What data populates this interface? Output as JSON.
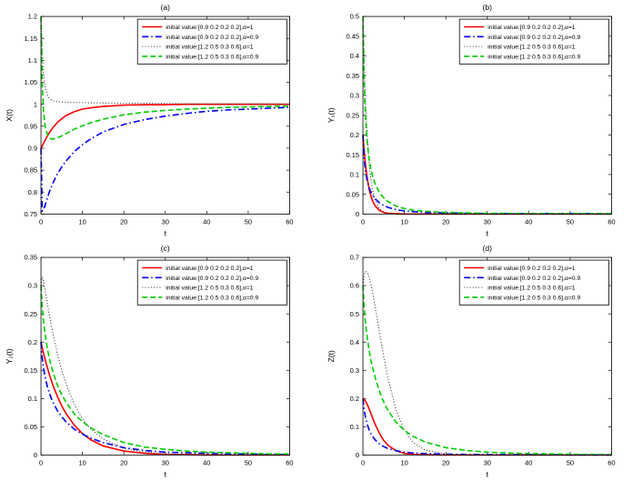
{
  "figure": {
    "background": "#ffffff",
    "axes_color": "#000000",
    "legend_border_color": "#000000"
  },
  "chart_data": [
    {
      "type": "line",
      "title": "(a)",
      "xlabel": "t",
      "ylabel": "X(t)",
      "xlim": [
        0,
        60
      ],
      "ylim": [
        0.75,
        1.2
      ],
      "grid": false,
      "legend_position": "top-right",
      "xticks": [
        0,
        10,
        20,
        30,
        40,
        50,
        60
      ],
      "yticks": {
        "values": [
          0.75,
          0.8,
          0.85,
          0.9,
          0.95,
          1,
          1.05,
          1.1,
          1.15,
          1.2
        ],
        "labels": [
          "0.75",
          "0.8",
          "0.85",
          "0.9",
          "0.95",
          "1",
          "1.05",
          "1.1",
          "1.15",
          "1.2"
        ]
      },
      "x": [
        0,
        0.3,
        0.6,
        1,
        1.5,
        2,
        2.5,
        3,
        4,
        5,
        6,
        8,
        10,
        12,
        15,
        20,
        25,
        30,
        35,
        40,
        45,
        50,
        55,
        60
      ],
      "series": [
        {
          "name": "initial value:[0.9 0.2 0.2 0.2],α=1",
          "color": "#ff0000",
          "style": "solid",
          "width": 1.6,
          "y": [
            0.9,
            0.905,
            0.911,
            0.918,
            0.927,
            0.935,
            0.942,
            0.948,
            0.959,
            0.967,
            0.974,
            0.983,
            0.989,
            0.992,
            0.995,
            0.998,
            0.999,
            0.999,
            1,
            1,
            1,
            1,
            1,
            1
          ]
        },
        {
          "name": "initial value:[0.9 0.2 0.2 0.2],α=0.9",
          "color": "#0000ee",
          "style": "dashdot",
          "width": 1.6,
          "y": [
            0.9,
            0.757,
            0.76,
            0.77,
            0.785,
            0.8,
            0.812,
            0.823,
            0.842,
            0.857,
            0.87,
            0.892,
            0.908,
            0.921,
            0.937,
            0.954,
            0.965,
            0.973,
            0.979,
            0.984,
            0.987,
            0.989,
            0.991,
            0.993
          ]
        },
        {
          "name": "initial value:[1.2 0.5 0.3 0.6],α=1",
          "color": "#303030",
          "style": "dotted",
          "width": 1.1,
          "y": [
            1.2,
            1.12,
            1.07,
            1.04,
            1.022,
            1.014,
            1.01,
            1.008,
            1.006,
            1.005,
            1.005,
            1.004,
            1.004,
            1.003,
            1.003,
            1.002,
            1.002,
            1.002,
            1.001,
            1.001,
            1.001,
            1.001,
            1.001,
            1.0
          ]
        },
        {
          "name": "initial value:[1.2 0.5 0.3 0.6],α=0.9",
          "color": "#00cc00",
          "style": "dashed",
          "width": 1.6,
          "y": [
            1.2,
            1.05,
            0.985,
            0.95,
            0.932,
            0.924,
            0.921,
            0.921,
            0.924,
            0.928,
            0.933,
            0.943,
            0.951,
            0.958,
            0.966,
            0.976,
            0.982,
            0.986,
            0.989,
            0.991,
            0.993,
            0.994,
            0.995,
            0.996
          ]
        }
      ]
    },
    {
      "type": "line",
      "title": "(b)",
      "xlabel": "t",
      "ylabel": "Y₁(t)",
      "xlim": [
        0,
        60
      ],
      "ylim": [
        0,
        0.5
      ],
      "grid": false,
      "legend_position": "top-right",
      "xticks": [
        0,
        10,
        20,
        30,
        40,
        50,
        60
      ],
      "yticks": {
        "values": [
          0,
          0.05,
          0.1,
          0.15,
          0.2,
          0.25,
          0.3,
          0.35,
          0.4,
          0.45,
          0.5
        ],
        "labels": [
          "0",
          "0.05",
          "0.1",
          "0.15",
          "0.2",
          "0.25",
          "0.3",
          "0.35",
          "0.4",
          "0.45",
          "0.5"
        ]
      },
      "x": [
        0,
        0.3,
        0.6,
        1,
        1.5,
        2,
        2.5,
        3,
        4,
        5,
        6,
        8,
        10,
        12,
        15,
        20,
        25,
        30,
        35,
        40,
        45,
        50,
        55,
        60
      ],
      "series": [
        {
          "name": "initial value:[0.9 0.2 0.2 0.2],α=1",
          "color": "#ff0000",
          "style": "solid",
          "width": 1.6,
          "y": [
            0.2,
            0.159,
            0.126,
            0.093,
            0.063,
            0.043,
            0.029,
            0.02,
            0.009,
            0.004,
            0.002,
            0.001,
            0,
            0,
            0,
            0,
            0,
            0,
            0,
            0,
            0,
            0,
            0,
            0
          ]
        },
        {
          "name": "initial value:[0.9 0.2 0.2 0.2],α=0.9",
          "color": "#0000ee",
          "style": "dashdot",
          "width": 1.6,
          "y": [
            0.2,
            0.14,
            0.11,
            0.085,
            0.066,
            0.054,
            0.045,
            0.038,
            0.028,
            0.022,
            0.017,
            0.011,
            0.008,
            0.006,
            0.004,
            0.003,
            0.002,
            0.001,
            0.001,
            0.001,
            0.001,
            0.001,
            0.001,
            0.001
          ]
        },
        {
          "name": "initial value:[1.2 0.5 0.3 0.6],α=1",
          "color": "#303030",
          "style": "dotted",
          "width": 1.1,
          "y": [
            0.5,
            0.381,
            0.29,
            0.202,
            0.128,
            0.081,
            0.052,
            0.033,
            0.013,
            0.005,
            0.002,
            0,
            0,
            0,
            0,
            0,
            0,
            0,
            0,
            0,
            0,
            0,
            0,
            0
          ]
        },
        {
          "name": "initial value:[1.2 0.5 0.3 0.6],α=0.9",
          "color": "#00cc00",
          "style": "dashed",
          "width": 1.6,
          "y": [
            0.5,
            0.33,
            0.25,
            0.185,
            0.138,
            0.11,
            0.09,
            0.075,
            0.054,
            0.041,
            0.032,
            0.02,
            0.014,
            0.01,
            0.007,
            0.004,
            0.003,
            0.002,
            0.002,
            0.001,
            0.001,
            0.001,
            0.001,
            0.001
          ]
        }
      ]
    },
    {
      "type": "line",
      "title": "(c)",
      "xlabel": "t",
      "ylabel": "Y₂(t)",
      "xlim": [
        0,
        60
      ],
      "ylim": [
        0,
        0.35
      ],
      "grid": false,
      "legend_position": "top-right",
      "xticks": [
        0,
        10,
        20,
        30,
        40,
        50,
        60
      ],
      "yticks": {
        "values": [
          0,
          0.05,
          0.1,
          0.15,
          0.2,
          0.25,
          0.3,
          0.35
        ],
        "labels": [
          "0",
          "0.05",
          "0.1",
          "0.15",
          "0.2",
          "0.25",
          "0.3",
          "0.35"
        ]
      },
      "x": [
        0,
        0.3,
        0.6,
        1,
        1.5,
        2,
        2.5,
        3,
        4,
        5,
        6,
        8,
        10,
        12,
        15,
        20,
        25,
        30,
        35,
        40,
        45,
        50,
        55,
        60
      ],
      "series": [
        {
          "name": "initial value:[0.9 0.2 0.2 0.2],α=1",
          "color": "#ff0000",
          "style": "solid",
          "width": 1.6,
          "y": [
            0.2,
            0.19,
            0.181,
            0.169,
            0.156,
            0.143,
            0.132,
            0.121,
            0.103,
            0.087,
            0.074,
            0.053,
            0.038,
            0.027,
            0.016,
            0.007,
            0.003,
            0.001,
            0.001,
            0,
            0,
            0,
            0,
            0
          ]
        },
        {
          "name": "initial value:[0.9 0.2 0.2 0.2],α=0.9",
          "color": "#0000ee",
          "style": "dashdot",
          "width": 1.6,
          "y": [
            0.2,
            0.172,
            0.155,
            0.138,
            0.122,
            0.11,
            0.1,
            0.092,
            0.078,
            0.068,
            0.059,
            0.046,
            0.037,
            0.03,
            0.022,
            0.013,
            0.008,
            0.005,
            0.004,
            0.003,
            0.002,
            0.002,
            0.001,
            0.001
          ]
        },
        {
          "name": "initial value:[1.2 0.5 0.3 0.6],α=1",
          "color": "#303030",
          "style": "dotted",
          "width": 1.1,
          "y": [
            0.3,
            0.315,
            0.308,
            0.292,
            0.27,
            0.249,
            0.229,
            0.211,
            0.178,
            0.15,
            0.127,
            0.09,
            0.064,
            0.046,
            0.028,
            0.012,
            0.005,
            0.002,
            0.001,
            0,
            0,
            0,
            0,
            0
          ]
        },
        {
          "name": "initial value:[1.2 0.5 0.3 0.6],α=0.9",
          "color": "#00cc00",
          "style": "dashed",
          "width": 1.6,
          "y": [
            0.3,
            0.262,
            0.238,
            0.213,
            0.19,
            0.172,
            0.157,
            0.144,
            0.123,
            0.107,
            0.094,
            0.073,
            0.059,
            0.048,
            0.036,
            0.022,
            0.014,
            0.01,
            0.007,
            0.005,
            0.004,
            0.003,
            0.002,
            0.002
          ]
        }
      ]
    },
    {
      "type": "line",
      "title": "(d)",
      "xlabel": "t",
      "ylabel": "Z(t)",
      "xlim": [
        0,
        60
      ],
      "ylim": [
        0,
        0.7
      ],
      "grid": false,
      "legend_position": "top-right",
      "xticks": [
        0,
        10,
        20,
        30,
        40,
        50,
        60
      ],
      "yticks": {
        "values": [
          0,
          0.1,
          0.2,
          0.3,
          0.4,
          0.5,
          0.6,
          0.7
        ],
        "labels": [
          "0",
          "0.1",
          "0.2",
          "0.3",
          "0.4",
          "0.5",
          "0.6",
          "0.7"
        ]
      },
      "x": [
        0,
        0.3,
        0.6,
        1,
        1.5,
        2,
        2.5,
        3,
        4,
        5,
        6,
        8,
        10,
        12,
        15,
        20,
        25,
        30,
        35,
        40,
        45,
        50,
        55,
        60
      ],
      "series": [
        {
          "name": "initial value:[0.9 0.2 0.2 0.2],α=1",
          "color": "#ff0000",
          "style": "solid",
          "width": 1.6,
          "y": [
            0.2,
            0.197,
            0.191,
            0.18,
            0.163,
            0.144,
            0.125,
            0.107,
            0.076,
            0.052,
            0.035,
            0.015,
            0.006,
            0.002,
            0.001,
            0,
            0,
            0,
            0,
            0,
            0,
            0,
            0,
            0
          ]
        },
        {
          "name": "initial value:[0.9 0.2 0.2 0.2],α=0.9",
          "color": "#0000ee",
          "style": "dashdot",
          "width": 1.6,
          "y": [
            0.2,
            0.16,
            0.135,
            0.11,
            0.089,
            0.074,
            0.062,
            0.053,
            0.039,
            0.03,
            0.023,
            0.015,
            0.01,
            0.007,
            0.005,
            0.003,
            0.002,
            0.001,
            0.001,
            0.001,
            0.001,
            0,
            0,
            0
          ]
        },
        {
          "name": "initial value:[1.2 0.5 0.3 0.6],α=1",
          "color": "#303030",
          "style": "dotted",
          "width": 1.1,
          "y": [
            0.6,
            0.638,
            0.65,
            0.648,
            0.63,
            0.6,
            0.563,
            0.522,
            0.434,
            0.35,
            0.275,
            0.16,
            0.088,
            0.046,
            0.017,
            0.004,
            0.001,
            0,
            0,
            0,
            0,
            0,
            0,
            0
          ]
        },
        {
          "name": "initial value:[1.2 0.5 0.3 0.6],α=0.9",
          "color": "#00cc00",
          "style": "dashed",
          "width": 1.6,
          "y": [
            0.6,
            0.52,
            0.47,
            0.42,
            0.37,
            0.33,
            0.3,
            0.272,
            0.225,
            0.188,
            0.159,
            0.116,
            0.087,
            0.067,
            0.046,
            0.026,
            0.016,
            0.01,
            0.007,
            0.005,
            0.004,
            0.003,
            0.002,
            0.002
          ]
        }
      ]
    }
  ]
}
